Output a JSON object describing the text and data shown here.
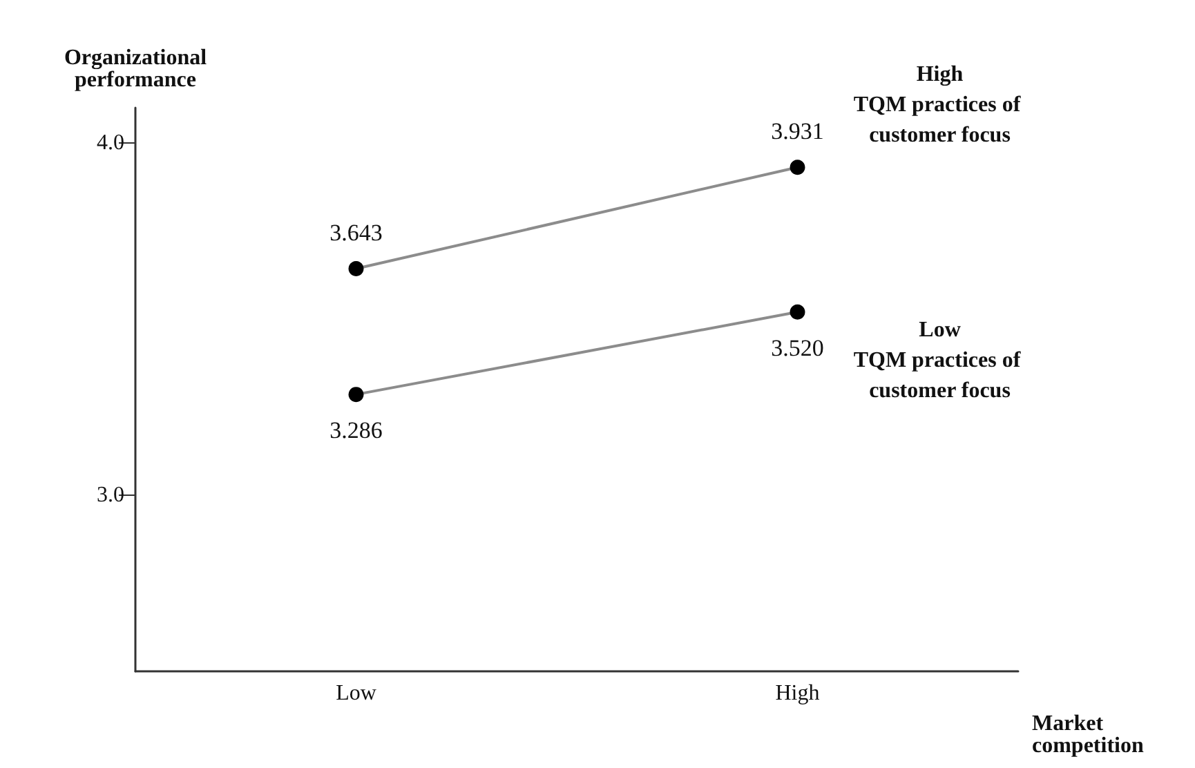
{
  "chart_data": {
    "type": "line",
    "xlabel": "Market competition",
    "ylabel": "Organizational performance",
    "categories": [
      "Low",
      "High"
    ],
    "series": [
      {
        "name": "High TQM practices of customer focus",
        "color": "#8c8c8c",
        "values": [
          3.643,
          3.931
        ],
        "value_labels": [
          "3.643",
          "3.931"
        ]
      },
      {
        "name": "Low TQM practices of customer focus",
        "color": "#8c8c8c",
        "values": [
          3.286,
          3.52
        ],
        "value_labels": [
          "3.286",
          "3.520"
        ]
      }
    ],
    "ylim": [
      2.5,
      4.1
    ],
    "yticks": [
      {
        "value": 3,
        "label": "3.0"
      },
      {
        "value": 4,
        "label": "4.0"
      }
    ],
    "marker": "circle",
    "line_style": "solid",
    "grid": false,
    "legend": false
  }
}
